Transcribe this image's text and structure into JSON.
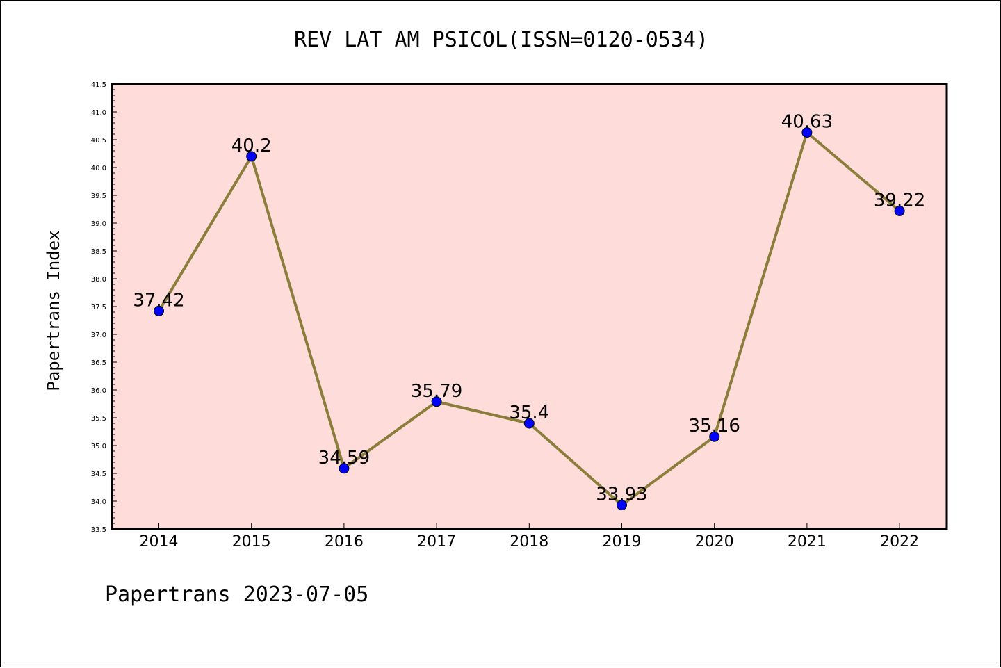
{
  "chart_data": {
    "type": "line",
    "title": "REV LAT AM PSICOL(ISSN=0120-0534)",
    "xlabel": "",
    "ylabel": "Papertrans Index",
    "categories": [
      "2014",
      "2015",
      "2016",
      "2017",
      "2018",
      "2019",
      "2020",
      "2021",
      "2022"
    ],
    "series": [
      {
        "values": [
          37.42,
          40.2,
          34.59,
          35.79,
          35.4,
          33.93,
          35.16,
          40.63,
          39.22
        ],
        "labels": [
          "37.42",
          "40.2",
          "34.59",
          "35.79",
          "35.4",
          "33.93",
          "35.16",
          "40.63",
          "39.22"
        ],
        "line_color": "#8b7d3a",
        "marker_color": "#0000ff"
      }
    ],
    "ylim": [
      33.5,
      41.5
    ],
    "yticks": [
      "33.5",
      "34.0",
      "34.5",
      "35.0",
      "35.5",
      "36.0",
      "36.5",
      "37.0",
      "37.5",
      "38.0",
      "38.5",
      "39.0",
      "39.5",
      "40.0",
      "40.5",
      "41.0",
      "41.5"
    ],
    "grid": false,
    "plot_background": "#fddcda",
    "footer": "Papertrans 2023-07-05"
  }
}
